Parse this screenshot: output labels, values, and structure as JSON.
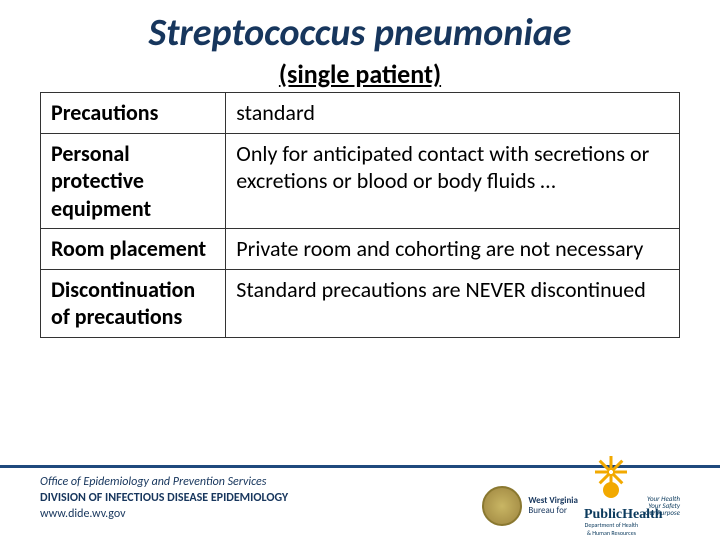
{
  "title": "Streptococcus pneumoniae",
  "subtitle": "(single patient)",
  "table": {
    "rows": [
      {
        "label": "Precautions",
        "value": "standard"
      },
      {
        "label": "Personal protective equipment",
        "value": "Only for anticipated contact with secretions or excretions or blood or body fluids …"
      },
      {
        "label": "Room placement",
        "value": "Private room and cohorting are not necessary"
      },
      {
        "label": "Discontinuation of precautions",
        "value": "Standard precautions are NEVER discontinued"
      }
    ]
  },
  "footer": {
    "line1": "Office of Epidemiology and Prevention Services",
    "line2": "DIVISION OF INFECTIOUS DISEASE EPIDEMIOLOGY",
    "line3": "www.dide.wv.gov"
  },
  "logo": {
    "state_top": "West Virginia",
    "state_mid": "Bureau for",
    "brand": "PublicHealth",
    "tagline1": "Your Health",
    "tagline2": "Your Safety",
    "tagline3": "Our Purpose",
    "dept": "Department of Health & Human Resources"
  },
  "colors": {
    "title_color": "#17365d",
    "accent_line": "#1f497d",
    "sun": "#f2a900",
    "seal": "#aa934a"
  }
}
